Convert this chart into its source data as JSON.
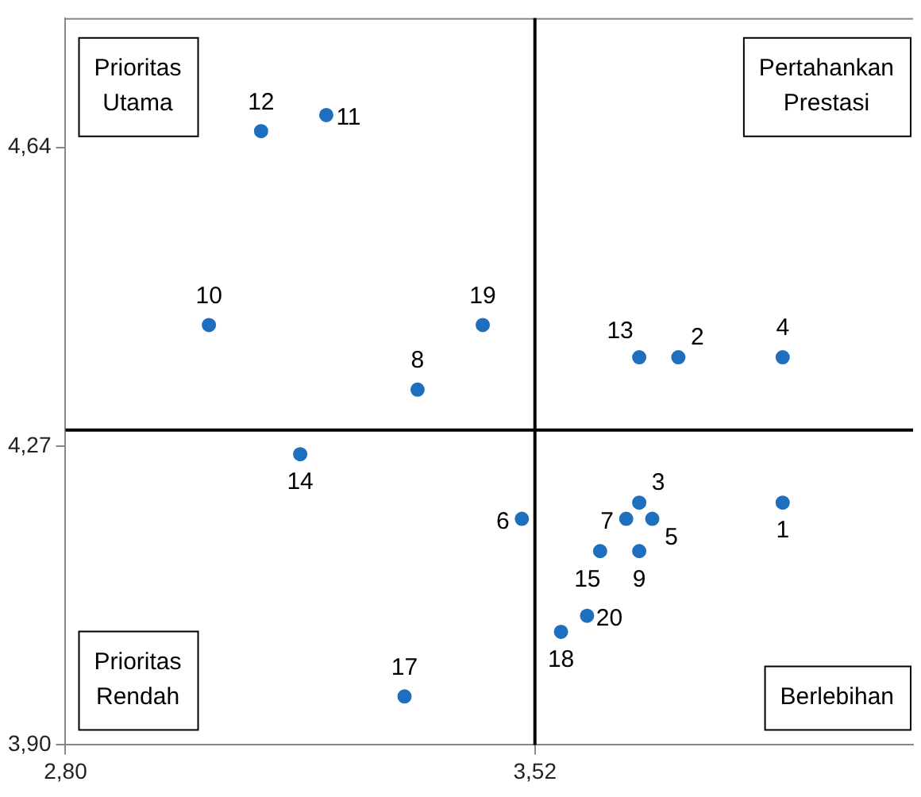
{
  "chart_data": {
    "type": "scatter",
    "marker": "circle",
    "grid": false,
    "legend": false,
    "xlim": [
      2.8,
      4.1
    ],
    "ylim": [
      3.9,
      4.8
    ],
    "xticks": [
      {
        "value": 2.8,
        "label": "2,80"
      },
      {
        "value": 3.52,
        "label": "3,52"
      }
    ],
    "yticks": [
      {
        "value": 3.9,
        "label": "3,90"
      },
      {
        "value": 4.27,
        "label": "4,27"
      },
      {
        "value": 4.64,
        "label": "4,64"
      }
    ],
    "series": [
      {
        "color": "#1f6fbf",
        "x": [
          3.9,
          3.74,
          3.68,
          3.9,
          3.7,
          3.5,
          3.66,
          3.34,
          3.68,
          3.02,
          3.2,
          3.1,
          3.68,
          3.16,
          3.62,
          3.32,
          3.56,
          3.44,
          3.6
        ],
        "values": [
          4.2,
          4.38,
          4.2,
          4.38,
          4.18,
          4.18,
          4.18,
          4.34,
          4.14,
          4.42,
          4.68,
          4.66,
          4.38,
          4.26,
          4.14,
          3.96,
          4.04,
          4.42,
          4.06
        ]
      }
    ],
    "ref_lines": [
      {
        "axis": "x",
        "value": 3.52,
        "color": "#000000"
      },
      {
        "axis": "y",
        "value": 4.29,
        "color": "#000000"
      }
    ],
    "annotations": [
      "Prioritas Utama",
      "Pertahankan Prestasi",
      "Prioritas Rendah",
      "Berlebihan",
      {
        "text": "1",
        "x": 3.9,
        "y": 4.2
      },
      {
        "text": "2",
        "x": 3.74,
        "y": 4.38
      },
      {
        "text": "3",
        "x": 3.68,
        "y": 4.2
      },
      {
        "text": "4",
        "x": 3.9,
        "y": 4.38
      },
      {
        "text": "5",
        "x": 3.7,
        "y": 4.18
      },
      {
        "text": "6",
        "x": 3.5,
        "y": 4.18
      },
      {
        "text": "7",
        "x": 3.66,
        "y": 4.18
      },
      {
        "text": "8",
        "x": 3.34,
        "y": 4.34
      },
      {
        "text": "9",
        "x": 3.68,
        "y": 4.14
      },
      {
        "text": "10",
        "x": 3.02,
        "y": 4.42
      },
      {
        "text": "11",
        "x": 3.2,
        "y": 4.68
      },
      {
        "text": "12",
        "x": 3.1,
        "y": 4.66
      },
      {
        "text": "13",
        "x": 3.68,
        "y": 4.38
      },
      {
        "text": "14",
        "x": 3.16,
        "y": 4.26
      },
      {
        "text": "15",
        "x": 3.62,
        "y": 4.14
      },
      {
        "text": "17",
        "x": 3.32,
        "y": 3.96
      },
      {
        "text": "18",
        "x": 3.56,
        "y": 4.04
      },
      {
        "text": "19",
        "x": 3.44,
        "y": 4.42
      },
      {
        "text": "20",
        "x": 3.6,
        "y": 4.06
      }
    ]
  }
}
